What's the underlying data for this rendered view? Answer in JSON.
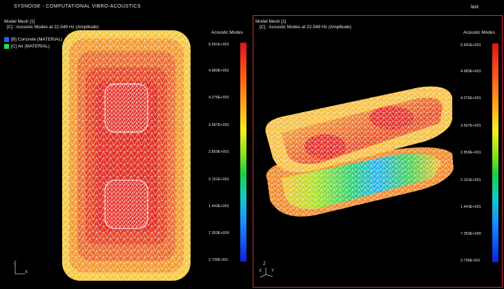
{
  "app": {
    "title": "SYSNOISE - COMPUTATIONAL VIBRO-ACOUSTICS",
    "corner_label": "last"
  },
  "viewports": [
    {
      "mesh_label": "Model Mesh [1]",
      "result_label": "[C] : Acoustic Modes at 22.549 Hz (Amplitude)",
      "materials": [
        {
          "label": "[B] Concrete (MATERIAL)",
          "color": "#2d5bff"
        },
        {
          "label": "[C] Air (MATERIAL)",
          "color": "#22e04a"
        }
      ],
      "colorbar_title": "Acoustic Modes",
      "axis_labels": {
        "y": "Z",
        "x": "X"
      }
    },
    {
      "mesh_label": "Model Mesh [1]",
      "result_label": "[C] : Acoustic Modes at 22.549 Hz (Amplitude)",
      "colorbar_title": "Acoustic Modes",
      "axis_labels": {
        "y": "Z",
        "x": "X",
        "z": "Y"
      },
      "active": true
    }
  ],
  "colorbar_ticks": [
    "5.691E+001",
    "4.983E+001",
    "4.275E+001",
    "3.567E+001",
    "2.859E+001",
    "2.151E+001",
    "1.443E+001",
    "7.353E+000",
    "2.735E-001"
  ],
  "colors": {
    "accent_border": "#c83232",
    "mesh_line": "#ffffff"
  }
}
